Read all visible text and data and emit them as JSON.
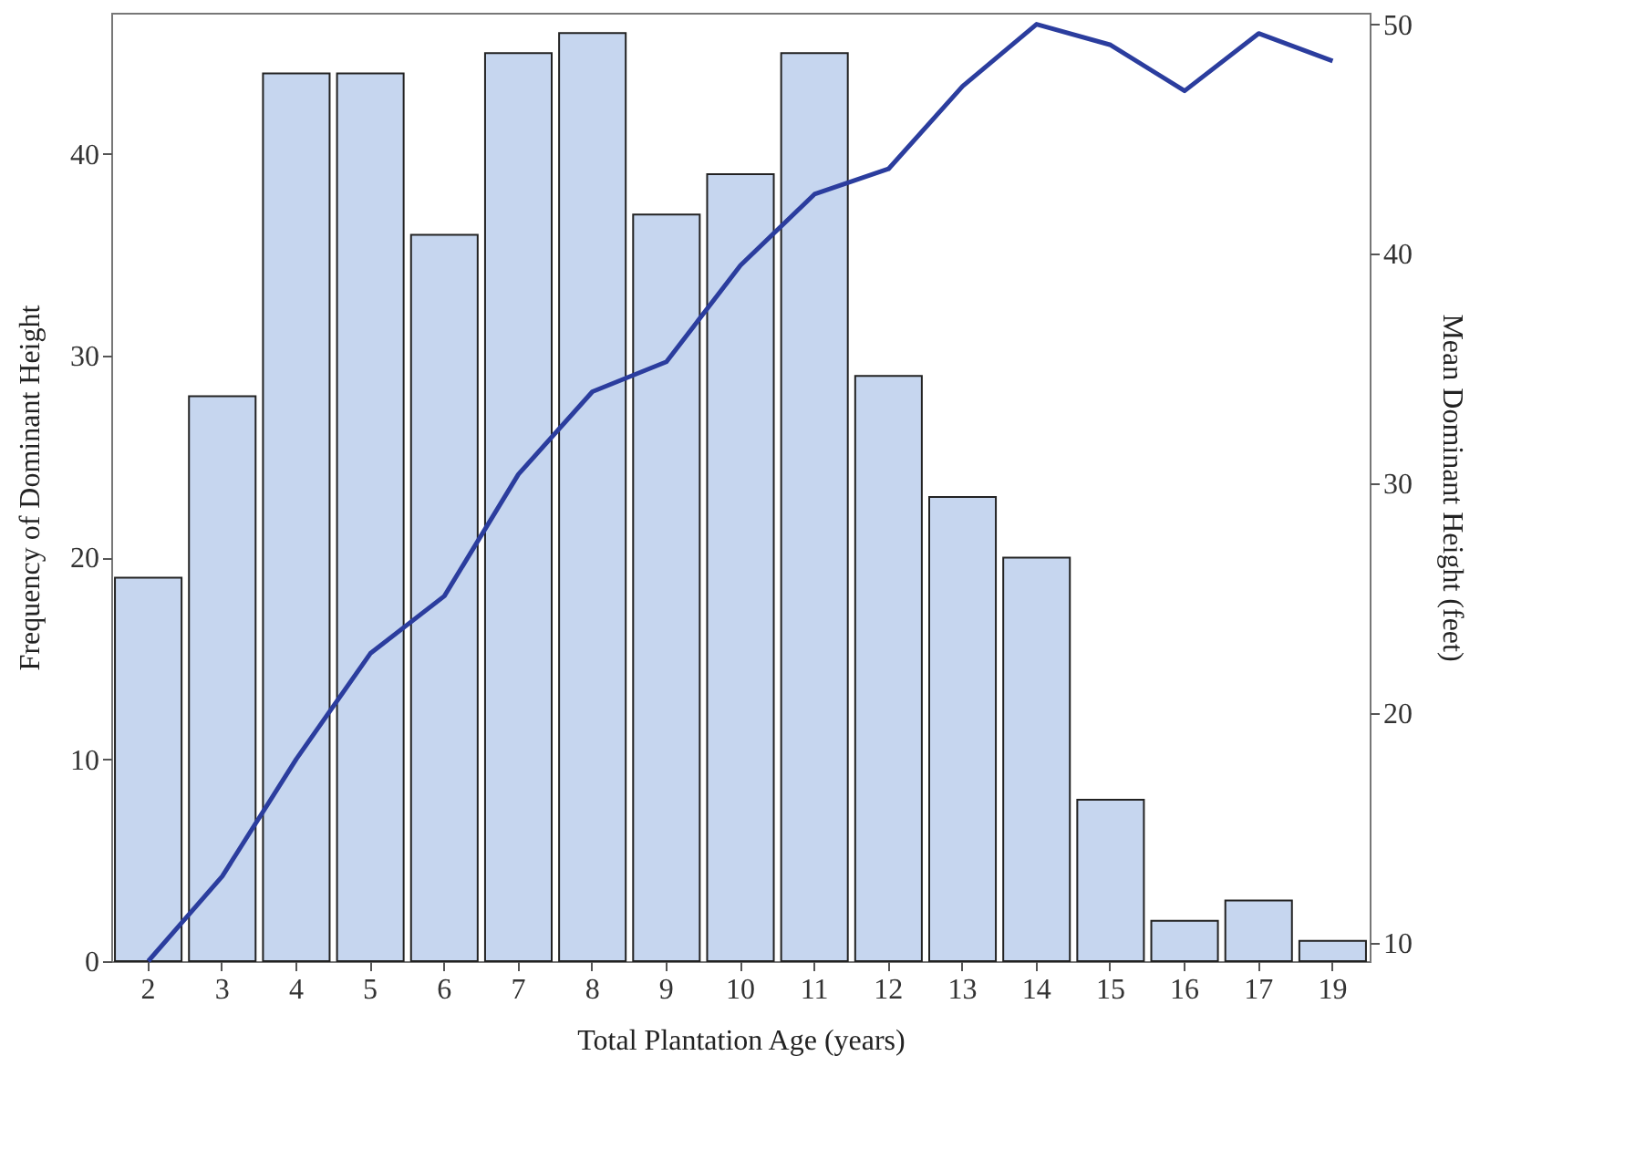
{
  "chart_data": {
    "type": "bar",
    "categories": [
      "2",
      "3",
      "4",
      "5",
      "6",
      "7",
      "8",
      "9",
      "10",
      "11",
      "12",
      "13",
      "14",
      "15",
      "16",
      "17",
      "19"
    ],
    "series": [
      {
        "color": "#c6d6ef",
        "values": [
          19,
          28,
          44,
          44,
          36,
          45,
          46,
          37,
          39,
          45,
          29,
          23,
          20,
          8,
          2,
          3,
          1
        ]
      },
      {
        "type": "line",
        "axis": "y2",
        "color": "#2b3d9e",
        "values": [
          9.2,
          12.9,
          18.0,
          22.6,
          25.1,
          30.4,
          34.0,
          35.3,
          39.5,
          42.6,
          43.7,
          47.3,
          50.0,
          49.1,
          47.1,
          49.6,
          48.4
        ]
      }
    ],
    "xlabel": "Total Plantation Age (years)",
    "ylabel": "Frequency of Dominant Height",
    "y2label": "Mean Dominant Height (feet)",
    "ylim": [
      0,
      47
    ],
    "yticks": [
      0,
      10,
      20,
      30,
      40
    ],
    "y2lim": [
      9.2,
      50.5
    ],
    "y2ticks": [
      10,
      20,
      30,
      40,
      50
    ],
    "grid": false
  }
}
